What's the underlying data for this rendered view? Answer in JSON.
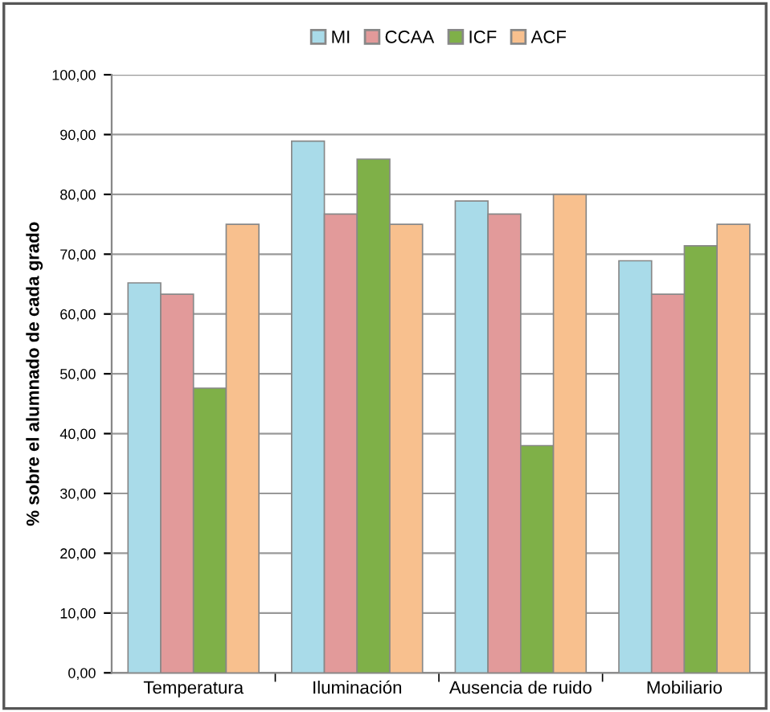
{
  "chart_data": {
    "type": "bar",
    "ylabel": "% sobre el alumnado de cada grado",
    "categories": [
      "Temperatura",
      "Iluminación",
      "Ausencia de ruido",
      "Mobiliario"
    ],
    "series": [
      {
        "name": "MI",
        "color": "#a9dbe9",
        "values": [
          65.2,
          88.9,
          78.9,
          68.9
        ]
      },
      {
        "name": "CCAA",
        "color": "#e29a9a",
        "values": [
          63.3,
          76.7,
          76.7,
          63.3
        ]
      },
      {
        "name": "ICF",
        "color": "#7fb048",
        "values": [
          47.6,
          85.9,
          38.0,
          71.4
        ]
      },
      {
        "name": "ACF",
        "color": "#f8c08e",
        "values": [
          75.0,
          75.0,
          80.0,
          75.0
        ]
      }
    ],
    "ylim": [
      0,
      100
    ],
    "yticks": [
      {
        "value": 0,
        "label": "0,00"
      },
      {
        "value": 10,
        "label": "10,00"
      },
      {
        "value": 20,
        "label": "20,00"
      },
      {
        "value": 30,
        "label": "30,00"
      },
      {
        "value": 40,
        "label": "40,00"
      },
      {
        "value": 50,
        "label": "50,00"
      },
      {
        "value": 60,
        "label": "60,00"
      },
      {
        "value": 70,
        "label": "70,00"
      },
      {
        "value": 80,
        "label": "80,00"
      },
      {
        "value": 90,
        "label": "90,00"
      },
      {
        "value": 100,
        "label": "100,00"
      }
    ],
    "grid": "y",
    "legend": "top"
  }
}
